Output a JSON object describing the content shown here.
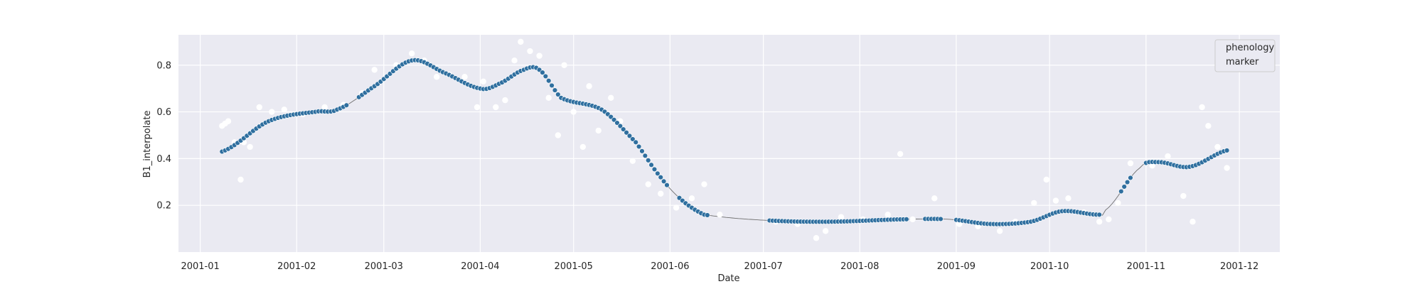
{
  "chart_data": {
    "type": "scatter",
    "xlabel": "Date",
    "ylabel": "B1_interpolate",
    "xlim": [
      "2000-12-25",
      "2001-12-14"
    ],
    "ylim": [
      0.0,
      0.93
    ],
    "x_ticks": [
      "2001-01-01",
      "2001-02-01",
      "2001-03-01",
      "2001-04-01",
      "2001-05-01",
      "2001-06-01",
      "2001-07-01",
      "2001-08-01",
      "2001-09-01",
      "2001-10-01",
      "2001-11-01",
      "2001-12-01"
    ],
    "x_tick_labels": [
      "2001-01",
      "2001-02",
      "2001-03",
      "2001-04",
      "2001-05",
      "2001-06",
      "2001-07",
      "2001-08",
      "2001-09",
      "2001-10",
      "2001-11",
      "2001-12"
    ],
    "y_ticks": [
      0.2,
      0.4,
      0.6,
      0.8
    ],
    "y_tick_labels": [
      "0.2",
      "0.4",
      "0.6",
      "0.8"
    ],
    "grid": true,
    "legend": {
      "placement": "top-right",
      "entries": [
        "phenology",
        "marker"
      ]
    },
    "colors": {
      "background": "#eaeaf2",
      "grid": "#ffffff",
      "interpolated_points": "#2f6f9f",
      "interpolated_edge": "#ffffff",
      "raw_points": "#ffffff",
      "line": "#6e6e6e"
    },
    "interpolated_series": {
      "x": [
        "2001-01-08",
        "2001-01-23",
        "2001-02-07",
        "2001-02-14",
        "2001-02-26",
        "2001-03-10",
        "2001-03-20",
        "2001-04-01",
        "2001-04-07",
        "2001-04-15",
        "2001-04-20",
        "2001-04-27",
        "2001-05-10",
        "2001-05-21",
        "2001-05-29",
        "2001-06-05",
        "2001-06-12",
        "2001-07-03",
        "2001-07-23",
        "2001-08-15",
        "2001-08-30",
        "2001-09-12",
        "2001-09-25",
        "2001-10-05",
        "2001-10-17",
        "2001-10-19",
        "2001-10-30",
        "2001-11-05",
        "2001-11-15",
        "2001-11-27"
      ],
      "y": [
        0.43,
        0.56,
        0.6,
        0.61,
        0.71,
        0.82,
        0.77,
        0.7,
        0.72,
        0.78,
        0.78,
        0.66,
        0.61,
        0.47,
        0.32,
        0.22,
        0.16,
        0.135,
        0.13,
        0.14,
        0.14,
        0.12,
        0.13,
        0.175,
        0.16,
        0.18,
        0.36,
        0.385,
        0.365,
        0.435
      ],
      "gaps": [
        [
          "2001-02-17",
          "2001-02-21"
        ],
        [
          "2001-02-28",
          "2001-03-01"
        ],
        [
          "2001-05-31",
          "2001-06-04"
        ],
        [
          "2001-06-13",
          "2001-07-03"
        ],
        [
          "2001-08-16",
          "2001-08-22"
        ],
        [
          "2001-08-27",
          "2001-09-01"
        ],
        [
          "2001-10-17",
          "2001-10-24"
        ],
        [
          "2001-10-27",
          "2001-11-01"
        ]
      ]
    },
    "raw_observations": {
      "x": [
        "2001-01-08",
        "2001-01-09",
        "2001-01-10",
        "2001-01-12",
        "2001-01-14",
        "2001-01-15",
        "2001-01-17",
        "2001-01-20",
        "2001-01-24",
        "2001-01-28",
        "2001-02-03",
        "2001-02-10",
        "2001-02-16",
        "2001-02-22",
        "2001-02-26",
        "2001-03-05",
        "2001-03-10",
        "2001-03-14",
        "2001-03-18",
        "2001-03-22",
        "2001-03-27",
        "2001-03-31",
        "2001-04-02",
        "2001-04-06",
        "2001-04-09",
        "2001-04-12",
        "2001-04-14",
        "2001-04-17",
        "2001-04-20",
        "2001-04-23",
        "2001-04-26",
        "2001-04-28",
        "2001-05-01",
        "2001-05-04",
        "2001-05-06",
        "2001-05-09",
        "2001-05-13",
        "2001-05-16",
        "2001-05-20",
        "2001-05-25",
        "2001-05-29",
        "2001-06-03",
        "2001-06-08",
        "2001-06-12",
        "2001-06-17",
        "2001-07-05",
        "2001-07-12",
        "2001-07-18",
        "2001-07-21",
        "2001-07-26",
        "2001-08-02",
        "2001-08-10",
        "2001-08-14",
        "2001-08-18",
        "2001-08-25",
        "2001-09-02",
        "2001-09-08",
        "2001-09-15",
        "2001-09-20",
        "2001-09-26",
        "2001-09-30",
        "2001-10-03",
        "2001-10-07",
        "2001-10-12",
        "2001-10-17",
        "2001-10-20",
        "2001-10-23",
        "2001-10-27",
        "2001-11-03",
        "2001-11-08",
        "2001-11-13",
        "2001-11-16",
        "2001-11-19",
        "2001-11-21",
        "2001-11-24",
        "2001-11-27"
      ],
      "y": [
        0.54,
        0.55,
        0.56,
        0.47,
        0.31,
        0.47,
        0.45,
        0.62,
        0.6,
        0.61,
        0.59,
        0.62,
        0.63,
        0.68,
        0.78,
        0.8,
        0.85,
        0.82,
        0.75,
        0.76,
        0.75,
        0.62,
        0.73,
        0.62,
        0.65,
        0.82,
        0.9,
        0.86,
        0.84,
        0.66,
        0.5,
        0.8,
        0.6,
        0.45,
        0.71,
        0.52,
        0.66,
        0.56,
        0.39,
        0.29,
        0.25,
        0.19,
        0.23,
        0.29,
        0.16,
        0.13,
        0.12,
        0.06,
        0.09,
        0.15,
        0.14,
        0.16,
        0.42,
        0.14,
        0.23,
        0.12,
        0.11,
        0.09,
        0.13,
        0.21,
        0.31,
        0.22,
        0.23,
        0.17,
        0.13,
        0.14,
        0.21,
        0.38,
        0.37,
        0.41,
        0.24,
        0.13,
        0.62,
        0.54,
        0.45,
        0.36
      ]
    }
  }
}
